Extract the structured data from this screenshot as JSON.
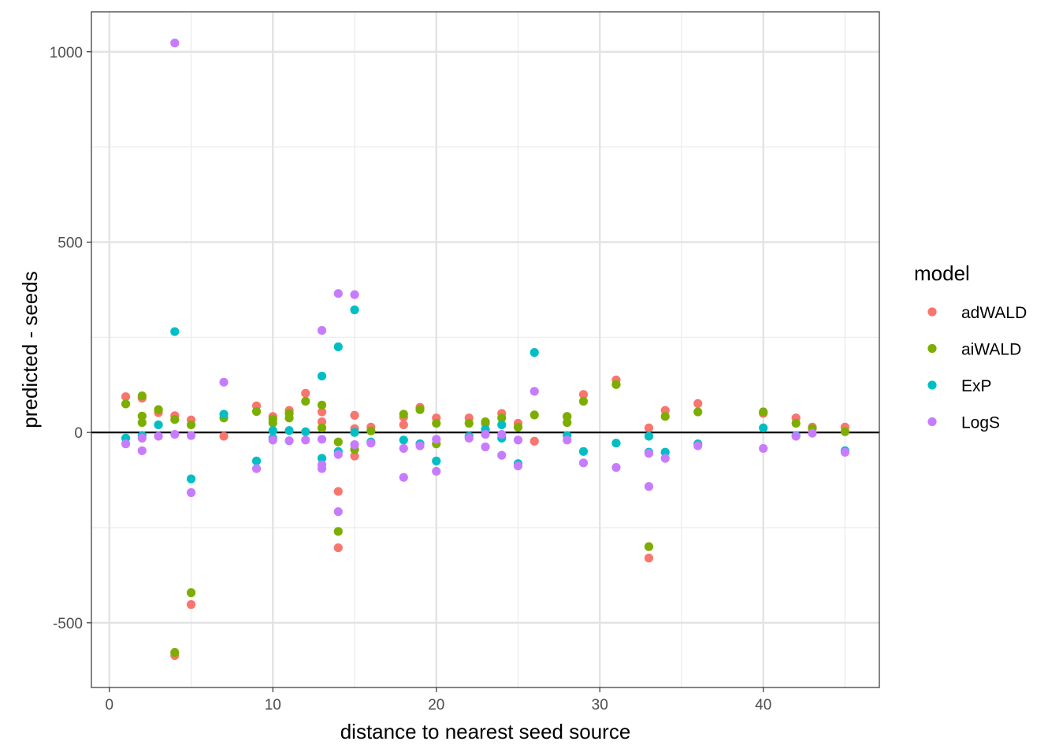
{
  "chart_data": {
    "type": "scatter",
    "title": "",
    "xlabel": "distance to nearest seed source",
    "ylabel": "predicted - seeds",
    "xlim": [
      -1.1,
      47.1
    ],
    "ylim": [
      -670,
      1105
    ],
    "x_ticks": [
      0,
      10,
      20,
      30,
      40
    ],
    "x_tick_labels": [
      "0",
      "10",
      "20",
      "30",
      "40"
    ],
    "y_ticks": [
      -500,
      0,
      500,
      1000
    ],
    "y_tick_labels": [
      "-500",
      "0",
      "500",
      "1000"
    ],
    "x_minor_ticks": [
      5,
      15,
      25,
      35,
      45
    ],
    "y_minor_ticks": [
      -250,
      250,
      750
    ],
    "grid": true,
    "reference_line_y": 0,
    "legend": {
      "title": "model",
      "position": "right"
    },
    "series": [
      {
        "name": "adWALD",
        "color": "#F8766D",
        "points": [
          [
            1,
            94
          ],
          [
            2,
            90
          ],
          [
            3,
            52
          ],
          [
            4,
            44
          ],
          [
            4,
            -586
          ],
          [
            5,
            33
          ],
          [
            5,
            -452
          ],
          [
            7,
            -10
          ],
          [
            9,
            70
          ],
          [
            10,
            42
          ],
          [
            11,
            58
          ],
          [
            12,
            103
          ],
          [
            13,
            54
          ],
          [
            13,
            28
          ],
          [
            14,
            -155
          ],
          [
            14,
            -303
          ],
          [
            15,
            45
          ],
          [
            15,
            10
          ],
          [
            15,
            -62
          ],
          [
            16,
            14
          ],
          [
            18,
            40
          ],
          [
            18,
            20
          ],
          [
            19,
            66
          ],
          [
            20,
            38
          ],
          [
            22,
            38
          ],
          [
            23,
            23
          ],
          [
            24,
            50
          ],
          [
            25,
            24
          ],
          [
            26,
            -23
          ],
          [
            28,
            42
          ],
          [
            29,
            100
          ],
          [
            31,
            138
          ],
          [
            33,
            12
          ],
          [
            33,
            -330
          ],
          [
            34,
            58
          ],
          [
            36,
            76
          ],
          [
            40,
            50
          ],
          [
            42,
            38
          ],
          [
            43,
            14
          ],
          [
            45,
            14
          ]
        ]
      },
      {
        "name": "aiWALD",
        "color": "#7CAE00",
        "points": [
          [
            1,
            75
          ],
          [
            2,
            96
          ],
          [
            2,
            43
          ],
          [
            2,
            26
          ],
          [
            3,
            60
          ],
          [
            4,
            34
          ],
          [
            4,
            -578
          ],
          [
            5,
            20
          ],
          [
            5,
            -421
          ],
          [
            7,
            38
          ],
          [
            9,
            55
          ],
          [
            10,
            35
          ],
          [
            10,
            25
          ],
          [
            11,
            50
          ],
          [
            11,
            38
          ],
          [
            12,
            82
          ],
          [
            13,
            72
          ],
          [
            13,
            12
          ],
          [
            14,
            -25
          ],
          [
            14,
            -260
          ],
          [
            15,
            -45
          ],
          [
            16,
            4
          ],
          [
            18,
            48
          ],
          [
            19,
            60
          ],
          [
            20,
            24
          ],
          [
            20,
            -30
          ],
          [
            22,
            24
          ],
          [
            23,
            28
          ],
          [
            24,
            38
          ],
          [
            25,
            14
          ],
          [
            26,
            46
          ],
          [
            28,
            42
          ],
          [
            28,
            26
          ],
          [
            29,
            82
          ],
          [
            31,
            126
          ],
          [
            33,
            -300
          ],
          [
            34,
            42
          ],
          [
            36,
            54
          ],
          [
            40,
            54
          ],
          [
            42,
            24
          ],
          [
            43,
            10
          ],
          [
            45,
            2
          ]
        ]
      },
      {
        "name": "ExP",
        "color": "#00BFC4",
        "points": [
          [
            1,
            -15
          ],
          [
            2,
            -8
          ],
          [
            3,
            20
          ],
          [
            4,
            265
          ],
          [
            5,
            -122
          ],
          [
            7,
            48
          ],
          [
            9,
            -75
          ],
          [
            10,
            5
          ],
          [
            10,
            -15
          ],
          [
            11,
            5
          ],
          [
            12,
            2
          ],
          [
            13,
            148
          ],
          [
            13,
            -68
          ],
          [
            14,
            225
          ],
          [
            14,
            -50
          ],
          [
            15,
            322
          ],
          [
            15,
            0
          ],
          [
            16,
            -25
          ],
          [
            18,
            -20
          ],
          [
            19,
            -30
          ],
          [
            20,
            -75
          ],
          [
            22,
            -10
          ],
          [
            23,
            8
          ],
          [
            24,
            20
          ],
          [
            24,
            -15
          ],
          [
            25,
            -82
          ],
          [
            26,
            210
          ],
          [
            28,
            -8
          ],
          [
            29,
            -50
          ],
          [
            31,
            -28
          ],
          [
            33,
            -10
          ],
          [
            33,
            -52
          ],
          [
            34,
            -52
          ],
          [
            36,
            -30
          ],
          [
            40,
            12
          ],
          [
            42,
            -8
          ],
          [
            45,
            -48
          ]
        ]
      },
      {
        "name": "LogS",
        "color": "#C77CFF",
        "points": [
          [
            1,
            -30
          ],
          [
            2,
            -15
          ],
          [
            2,
            -48
          ],
          [
            3,
            -10
          ],
          [
            4,
            1023
          ],
          [
            4,
            -5
          ],
          [
            5,
            -8
          ],
          [
            5,
            -158
          ],
          [
            7,
            132
          ],
          [
            9,
            -95
          ],
          [
            10,
            -20
          ],
          [
            11,
            -22
          ],
          [
            12,
            -20
          ],
          [
            13,
            268
          ],
          [
            13,
            -18
          ],
          [
            13,
            -85
          ],
          [
            13,
            -95
          ],
          [
            14,
            365
          ],
          [
            14,
            -58
          ],
          [
            14,
            -208
          ],
          [
            15,
            362
          ],
          [
            15,
            -32
          ],
          [
            16,
            -28
          ],
          [
            18,
            -42
          ],
          [
            18,
            -118
          ],
          [
            19,
            -35
          ],
          [
            20,
            -18
          ],
          [
            20,
            -102
          ],
          [
            22,
            -15
          ],
          [
            23,
            -5
          ],
          [
            23,
            -38
          ],
          [
            24,
            -5
          ],
          [
            24,
            -60
          ],
          [
            25,
            -20
          ],
          [
            25,
            -88
          ],
          [
            26,
            108
          ],
          [
            28,
            -20
          ],
          [
            29,
            -80
          ],
          [
            31,
            -92
          ],
          [
            33,
            -55
          ],
          [
            33,
            -142
          ],
          [
            34,
            -68
          ],
          [
            36,
            -35
          ],
          [
            40,
            -42
          ],
          [
            42,
            -10
          ],
          [
            43,
            -2
          ],
          [
            45,
            -52
          ]
        ]
      }
    ]
  }
}
